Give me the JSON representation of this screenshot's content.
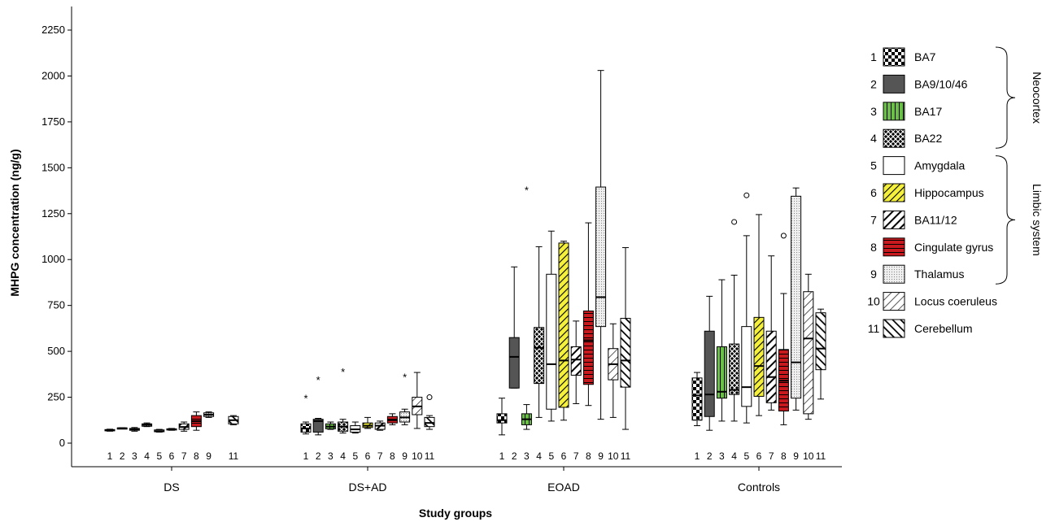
{
  "chart_data": {
    "type": "boxplot",
    "xlabel": "Study groups",
    "ylabel": "MHPG concentration (ng/g)",
    "ylim": [
      0,
      2350
    ],
    "yticks": [
      0,
      250,
      500,
      750,
      1000,
      1250,
      1500,
      1750,
      2000,
      2250
    ],
    "grid": false,
    "legend_position": "right",
    "groups": [
      "DS",
      "DS+AD",
      "EOAD",
      "Controls"
    ],
    "regions": [
      {
        "num": "1",
        "name": "BA7",
        "fill": "check",
        "color": "#000000"
      },
      {
        "num": "2",
        "name": "BA9/10/46",
        "fill": "solid",
        "color": "#555555"
      },
      {
        "num": "3",
        "name": "BA17",
        "fill": "vlines",
        "color": "#6cc04a"
      },
      {
        "num": "4",
        "name": "BA22",
        "fill": "crosshatch",
        "color": "#000000"
      },
      {
        "num": "5",
        "name": "Amygdala",
        "fill": "white",
        "color": "#ffffff"
      },
      {
        "num": "6",
        "name": "Hippocampus",
        "fill": "diag-yellow",
        "color": "#f4f03c"
      },
      {
        "num": "7",
        "name": "BA11/12",
        "fill": "diag-thick",
        "color": "#000000"
      },
      {
        "num": "8",
        "name": "Cingulate gyrus",
        "fill": "hlines-red",
        "color": "#c8191e"
      },
      {
        "num": "9",
        "name": "Thalamus",
        "fill": "dots",
        "color": "#e0e0e0"
      },
      {
        "num": "10",
        "name": "Locus coeruleus",
        "fill": "diag-thin",
        "color": "#ffffff"
      },
      {
        "num": "11",
        "name": "Cerebellum",
        "fill": "bdiag",
        "color": "#000000"
      }
    ],
    "brackets": [
      {
        "label": "Neocortex",
        "from": 0,
        "to": 3
      },
      {
        "label": "Limbic system",
        "from": 4,
        "to": 8
      }
    ],
    "series": [
      {
        "group": "DS",
        "boxes": [
          {
            "region": 0,
            "min": 65,
            "q1": 67,
            "median": 70,
            "q3": 74,
            "max": 76
          },
          {
            "region": 1,
            "min": 78,
            "q1": 79,
            "median": 81,
            "q3": 83,
            "max": 84
          },
          {
            "region": 2,
            "min": 65,
            "q1": 70,
            "median": 74,
            "q3": 80,
            "max": 85
          },
          {
            "region": 3,
            "min": 90,
            "q1": 92,
            "median": 100,
            "q3": 105,
            "max": 110
          },
          {
            "region": 4,
            "min": 60,
            "q1": 62,
            "median": 65,
            "q3": 72,
            "max": 75
          },
          {
            "region": 5,
            "min": 70,
            "q1": 72,
            "median": 75,
            "q3": 78,
            "max": 80
          },
          {
            "region": 6,
            "min": 65,
            "q1": 75,
            "median": 88,
            "q3": 105,
            "max": 115
          },
          {
            "region": 7,
            "min": 70,
            "q1": 90,
            "median": 120,
            "q3": 150,
            "max": 170
          },
          {
            "region": 8,
            "min": 140,
            "q1": 145,
            "median": 155,
            "q3": 165,
            "max": 170
          },
          {
            "region": 10,
            "min": 100,
            "q1": 105,
            "median": 125,
            "q3": 145,
            "max": 150
          }
        ],
        "outliers": []
      },
      {
        "group": "DS+AD",
        "boxes": [
          {
            "region": 0,
            "min": 50,
            "q1": 60,
            "median": 80,
            "q3": 105,
            "max": 115
          },
          {
            "region": 1,
            "min": 45,
            "q1": 60,
            "median": 120,
            "q3": 130,
            "max": 135
          },
          {
            "region": 2,
            "min": 75,
            "q1": 78,
            "median": 90,
            "q3": 105,
            "max": 115
          },
          {
            "region": 3,
            "min": 55,
            "q1": 65,
            "median": 90,
            "q3": 115,
            "max": 130
          },
          {
            "region": 4,
            "min": 55,
            "q1": 60,
            "median": 75,
            "q3": 95,
            "max": 115
          },
          {
            "region": 5,
            "min": 80,
            "q1": 85,
            "median": 95,
            "q3": 110,
            "max": 140
          },
          {
            "region": 6,
            "min": 70,
            "q1": 75,
            "median": 95,
            "q3": 110,
            "max": 120
          },
          {
            "region": 7,
            "min": 100,
            "q1": 110,
            "median": 125,
            "q3": 145,
            "max": 160
          },
          {
            "region": 8,
            "min": 100,
            "q1": 115,
            "median": 140,
            "q3": 170,
            "max": 185
          },
          {
            "region": 9,
            "min": 80,
            "q1": 155,
            "median": 200,
            "q3": 250,
            "max": 385
          },
          {
            "region": 10,
            "min": 75,
            "q1": 90,
            "median": 110,
            "q3": 140,
            "max": 150
          }
        ],
        "outliers": [
          {
            "region": 0,
            "value": 245,
            "marker": "*"
          },
          {
            "region": 1,
            "value": 345,
            "marker": "*"
          },
          {
            "region": 3,
            "value": 390,
            "marker": "*"
          },
          {
            "region": 8,
            "value": 360,
            "marker": "*"
          },
          {
            "region": 10,
            "value": 250,
            "marker": "o"
          }
        ]
      },
      {
        "group": "EOAD",
        "boxes": [
          {
            "region": 0,
            "min": 45,
            "q1": 110,
            "median": 125,
            "q3": 160,
            "max": 245
          },
          {
            "region": 1,
            "min": 300,
            "q1": 300,
            "median": 470,
            "q3": 575,
            "max": 960
          },
          {
            "region": 2,
            "min": 75,
            "q1": 100,
            "median": 130,
            "q3": 160,
            "max": 210
          },
          {
            "region": 3,
            "min": 140,
            "q1": 325,
            "median": 520,
            "q3": 630,
            "max": 1070
          },
          {
            "region": 4,
            "min": 120,
            "q1": 185,
            "median": 430,
            "q3": 920,
            "max": 1155
          },
          {
            "region": 5,
            "min": 125,
            "q1": 195,
            "median": 450,
            "q3": 1090,
            "max": 1100
          },
          {
            "region": 6,
            "min": 215,
            "q1": 370,
            "median": 455,
            "q3": 525,
            "max": 665
          },
          {
            "region": 7,
            "min": 205,
            "q1": 320,
            "median": 560,
            "q3": 720,
            "max": 1200
          },
          {
            "region": 8,
            "min": 130,
            "q1": 635,
            "median": 795,
            "q3": 1395,
            "max": 2030
          },
          {
            "region": 9,
            "min": 140,
            "q1": 345,
            "median": 430,
            "q3": 515,
            "max": 650
          },
          {
            "region": 10,
            "min": 75,
            "q1": 305,
            "median": 450,
            "q3": 680,
            "max": 1065
          }
        ],
        "outliers": [
          {
            "region": 2,
            "value": 1380,
            "marker": "*"
          }
        ]
      },
      {
        "group": "Controls",
        "boxes": [
          {
            "region": 0,
            "min": 95,
            "q1": 125,
            "median": 260,
            "q3": 355,
            "max": 385
          },
          {
            "region": 1,
            "min": 70,
            "q1": 145,
            "median": 265,
            "q3": 610,
            "max": 800
          },
          {
            "region": 2,
            "min": 120,
            "q1": 245,
            "median": 280,
            "q3": 525,
            "max": 890
          },
          {
            "region": 3,
            "min": 120,
            "q1": 265,
            "median": 290,
            "q3": 540,
            "max": 915
          },
          {
            "region": 4,
            "min": 110,
            "q1": 200,
            "median": 305,
            "q3": 635,
            "max": 1130
          },
          {
            "region": 5,
            "min": 150,
            "q1": 255,
            "median": 420,
            "q3": 685,
            "max": 1245
          },
          {
            "region": 6,
            "min": 180,
            "q1": 220,
            "median": 360,
            "q3": 610,
            "max": 1020
          },
          {
            "region": 7,
            "min": 100,
            "q1": 175,
            "median": 340,
            "q3": 510,
            "max": 815
          },
          {
            "region": 8,
            "min": 180,
            "q1": 245,
            "median": 440,
            "q3": 1345,
            "max": 1390
          },
          {
            "region": 9,
            "min": 130,
            "q1": 160,
            "median": 570,
            "q3": 825,
            "max": 920
          },
          {
            "region": 10,
            "min": 240,
            "q1": 400,
            "median": 515,
            "q3": 710,
            "max": 730
          }
        ],
        "outliers": [
          {
            "region": 3,
            "value": 1205,
            "marker": "o"
          },
          {
            "region": 4,
            "value": 1350,
            "marker": "o"
          },
          {
            "region": 7,
            "value": 1130,
            "marker": "o"
          }
        ]
      }
    ]
  }
}
